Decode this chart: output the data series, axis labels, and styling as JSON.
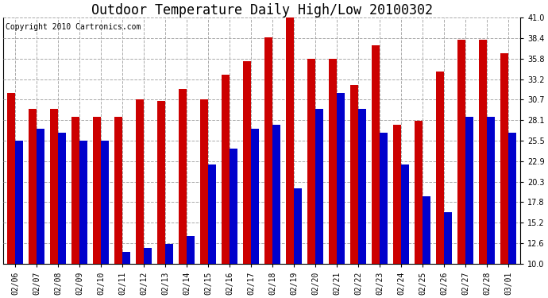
{
  "title": "Outdoor Temperature Daily High/Low 20100302",
  "copyright": "Copyright 2010 Cartronics.com",
  "dates": [
    "02/06",
    "02/07",
    "02/08",
    "02/09",
    "02/10",
    "02/11",
    "02/12",
    "02/13",
    "02/14",
    "02/15",
    "02/16",
    "02/17",
    "02/18",
    "02/19",
    "02/20",
    "02/21",
    "02/22",
    "02/23",
    "02/24",
    "02/25",
    "02/26",
    "02/27",
    "02/28",
    "03/01"
  ],
  "highs": [
    31.5,
    29.5,
    29.5,
    28.5,
    28.5,
    28.5,
    30.7,
    30.5,
    32.0,
    30.7,
    33.8,
    35.5,
    38.5,
    41.0,
    35.8,
    35.8,
    32.5,
    37.5,
    27.5,
    28.0,
    34.2,
    38.2,
    38.2,
    36.5
  ],
  "lows": [
    25.5,
    27.0,
    26.5,
    25.5,
    25.5,
    11.5,
    12.0,
    12.5,
    13.5,
    22.5,
    24.5,
    27.0,
    27.5,
    19.5,
    29.5,
    31.5,
    29.5,
    26.5,
    22.5,
    18.5,
    16.5,
    28.5,
    28.5,
    26.5
  ],
  "high_color": "#cc0000",
  "low_color": "#0000cc",
  "bg_color": "#ffffff",
  "plot_bg_color": "#ffffff",
  "grid_color": "#aaaaaa",
  "ylim": [
    10.0,
    41.0
  ],
  "yticks": [
    10.0,
    12.6,
    15.2,
    17.8,
    20.3,
    22.9,
    25.5,
    28.1,
    30.7,
    33.2,
    35.8,
    38.4,
    41.0
  ],
  "title_fontsize": 12,
  "copyright_fontsize": 7,
  "tick_fontsize": 7,
  "bar_width": 0.38,
  "ybase": 10.0
}
